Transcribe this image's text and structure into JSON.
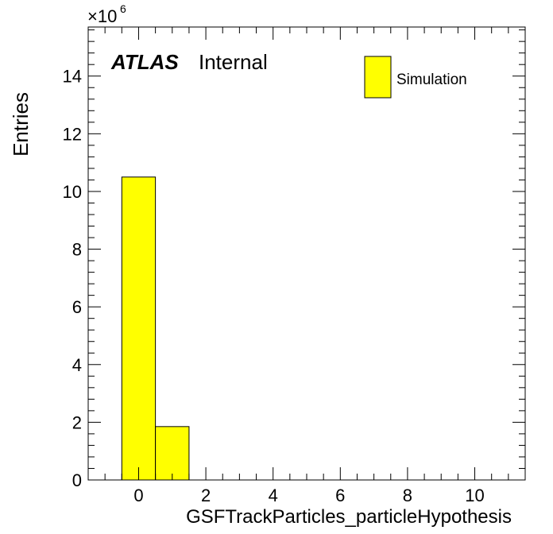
{
  "chart_data": {
    "type": "bar",
    "title": "",
    "xlabel": "GSFTrackParticles_particleHypothesis",
    "ylabel": "Entries",
    "y_multiplier_base": "×10",
    "y_multiplier_exp": "6",
    "xlim": [
      -1.5,
      11.5
    ],
    "ylim": [
      0,
      15.7
    ],
    "x_ticks": [
      0,
      2,
      4,
      6,
      8,
      10
    ],
    "y_ticks": [
      0,
      2,
      4,
      6,
      8,
      10,
      12,
      14
    ],
    "bin_width": 1,
    "bins": [
      {
        "center": 0,
        "value": 10.5
      },
      {
        "center": 1,
        "value": 1.85
      }
    ],
    "series": [
      {
        "name": "Simulation",
        "color": "#ffff00"
      }
    ],
    "legend_position": "top-right",
    "atlas_label": "ATLAS",
    "atlas_status": "Internal",
    "grid": false
  }
}
